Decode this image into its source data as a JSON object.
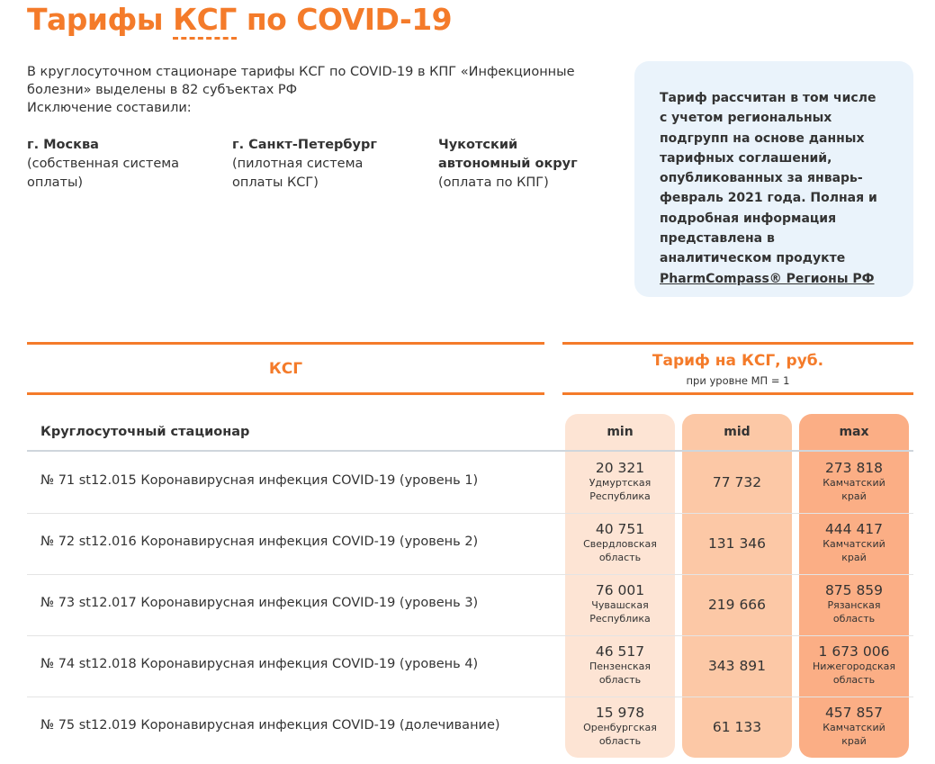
{
  "header": {
    "title_start": "Тарифы",
    "title_term": "КСГ",
    "title_end": "по COVID-19"
  },
  "intro": {
    "line1": "В круглосуточном стационаре тарифы КСГ по COVID-19 в КПГ «Инфекционные болезни» выделены в 82 субъектах РФ",
    "line2": "Исключение составили:"
  },
  "exceptions": [
    {
      "name": "г. Москва",
      "note": "(собственная система оплаты)"
    },
    {
      "name": "г. Санкт-Петербург",
      "note": "(пилотная система оплаты КСГ)"
    },
    {
      "name": "Чукотский автономный округ",
      "note": "(оплата по КПГ)"
    }
  ],
  "info_box": {
    "text": "Тариф рассчитан в том числе с учетом региональных подгрупп на основе данных тарифных соглашений, опубликованных за январь-февраль 2021 года. Полная и подробная информация представлена в аналитическом продукте",
    "link": "PharmCompass® Регионы РФ"
  },
  "table": {
    "ksg_header": "КСГ",
    "tariff_header": "Тариф на КСГ, руб.",
    "tariff_subheader": "при уровне МП = 1",
    "section": "Круглосуточный стационар",
    "columns": [
      "min",
      "mid",
      "max"
    ],
    "rows": [
      {
        "name": "№ 71 st12.015 Коронавирусная инфекция COVID-19 (уровень 1)",
        "min": "20 321",
        "min_region": "Удмуртская Республика",
        "mid": "77 732",
        "max": "273 818",
        "max_region": "Камчатский край"
      },
      {
        "name": "№ 72 st12.016 Коронавирусная инфекция COVID-19 (уровень 2)",
        "min": "40 751",
        "min_region": "Свердловская область",
        "mid": "131 346",
        "max": "444 417",
        "max_region": "Камчатский край"
      },
      {
        "name": "№ 73 st12.017 Коронавирусная инфекция COVID-19 (уровень 3)",
        "min": "76 001",
        "min_region": "Чувашская Республика",
        "mid": "219 666",
        "max": "875 859",
        "max_region": "Рязанская область"
      },
      {
        "name": "№ 74 st12.018 Коронавирусная инфекция COVID-19 (уровень 4)",
        "min": "46 517",
        "min_region": "Пензенская область",
        "mid": "343 891",
        "max": "1 673 006",
        "max_region": "Нижегородская область"
      },
      {
        "name": "№ 75 st12.019 Коронавирусная инфекция COVID-19 (долечивание)",
        "min": "15 978",
        "min_region": "Оренбургская область",
        "mid": "61 133",
        "max": "457 857",
        "max_region": "Камчатский край"
      }
    ]
  }
}
